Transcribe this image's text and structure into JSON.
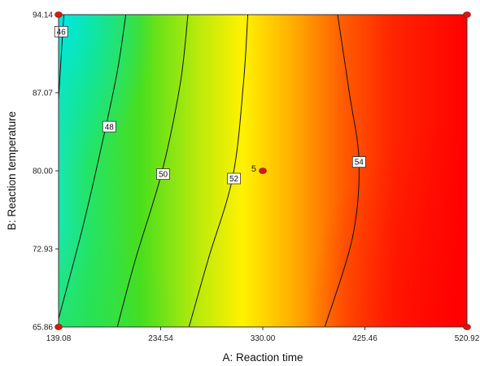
{
  "chart_data": {
    "type": "heatmap",
    "subtype": "contour",
    "title": "",
    "xlabel": "A: Reaction time",
    "ylabel": "B: Reaction temperature",
    "xlim": [
      139.08,
      520.92
    ],
    "ylim": [
      65.86,
      94.14
    ],
    "x_ticks": [
      "139.08",
      "234.54",
      "330.00",
      "425.46",
      "520.92"
    ],
    "y_ticks": [
      "65.86",
      "72.93",
      "80.00",
      "87.07",
      "94.14"
    ],
    "grid": false,
    "color_scale": {
      "low": "#00e8e0",
      "mid": "#f2f200",
      "high": "#ff0000",
      "range": [
        45.5,
        55
      ]
    },
    "contours": [
      {
        "level": 46,
        "label": "46",
        "points": [
          [
            144,
            94.14
          ],
          [
            141,
            89.5
          ],
          [
            139.08,
            86.5
          ]
        ],
        "label_at": [
          141.5,
          92.6
        ]
      },
      {
        "level": 48,
        "label": "48",
        "points": [
          [
            202,
            94.14
          ],
          [
            194,
            89
          ],
          [
            181,
            83
          ],
          [
            162,
            75
          ],
          [
            139.08,
            66.6
          ]
        ],
        "label_at": [
          186.5,
          84.0
        ]
      },
      {
        "level": 50,
        "label": "50",
        "points": [
          [
            260,
            94.14
          ],
          [
            253,
            88
          ],
          [
            236,
            80
          ],
          [
            211,
            72
          ],
          [
            194,
            65.86
          ]
        ],
        "label_at": [
          236.8,
          79.7
        ]
      },
      {
        "level": 52,
        "label": "52",
        "points": [
          [
            316,
            94.14
          ],
          [
            312,
            88
          ],
          [
            302,
            79.5
          ],
          [
            279,
            72
          ],
          [
            261,
            65.86
          ]
        ],
        "label_at": [
          303,
          79.3
        ]
      },
      {
        "level": 54,
        "label": "54",
        "points": [
          [
            400,
            94.14
          ],
          [
            411,
            87
          ],
          [
            420,
            80.8
          ],
          [
            414,
            74
          ],
          [
            388,
            65.86
          ]
        ],
        "label_at": [
          420,
          80.8
        ]
      }
    ],
    "design_points": [
      {
        "x": 139.08,
        "y": 94.14
      },
      {
        "x": 520.92,
        "y": 94.14
      },
      {
        "x": 139.08,
        "y": 65.86
      },
      {
        "x": 520.92,
        "y": 65.86
      },
      {
        "x": 330.0,
        "y": 80.0,
        "label": "5"
      }
    ]
  }
}
